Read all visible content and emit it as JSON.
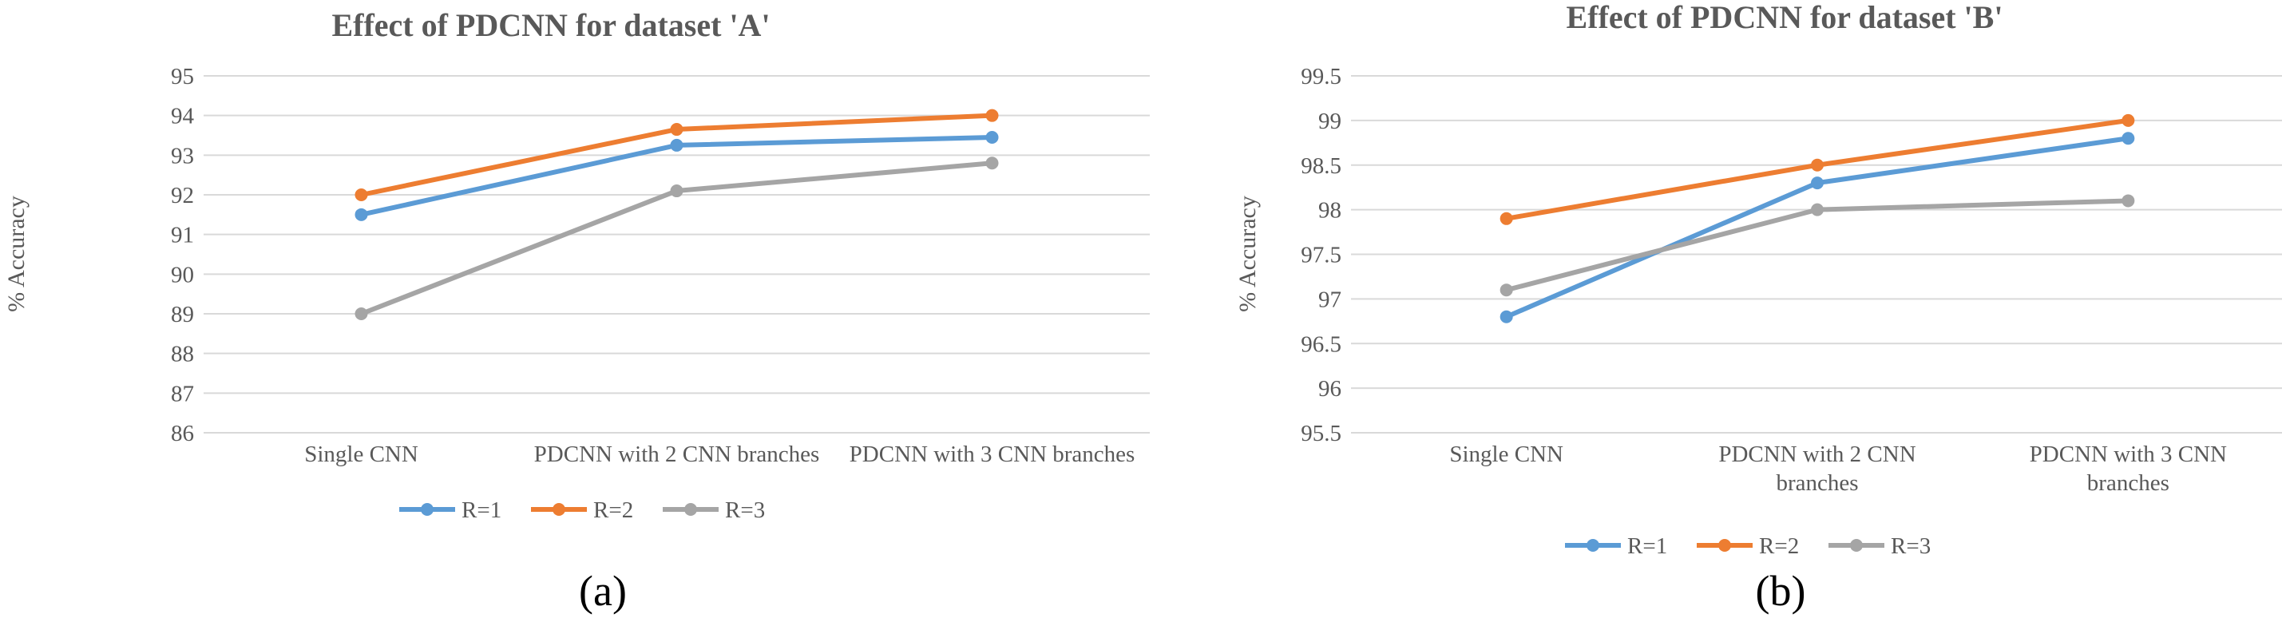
{
  "colors": {
    "R=1": "#5b9bd5",
    "R=2": "#ed7d31",
    "R=3": "#a5a5a5"
  },
  "chart_data": [
    {
      "type": "line",
      "title": "Effect of PDCNN for dataset 'A'",
      "ylabel": "% Accuracy",
      "xlabel": "",
      "categories": [
        [
          "Single CNN"
        ],
        [
          "PDCNN with 2 CNN branches"
        ],
        [
          "PDCNN with   3 CNN branches"
        ]
      ],
      "ylim": [
        86,
        95
      ],
      "ystep": 1,
      "yticks": [
        "86",
        "87",
        "88",
        "89",
        "90",
        "91",
        "92",
        "93",
        "94",
        "95"
      ],
      "grid": true,
      "legend_position": "bottom",
      "series": [
        {
          "name": "R=1",
          "values": [
            91.5,
            93.25,
            93.45
          ]
        },
        {
          "name": "R=2",
          "values": [
            92.0,
            93.65,
            94.0
          ]
        },
        {
          "name": "R=3",
          "values": [
            89.0,
            92.1,
            92.8
          ]
        }
      ],
      "panel_label": "(a)"
    },
    {
      "type": "line",
      "title": "Effect of PDCNN for dataset 'B'",
      "ylabel": "% Accuracy",
      "xlabel": "",
      "categories": [
        [
          "Single CNN"
        ],
        [
          "PDCNN with 2 CNN",
          "branches"
        ],
        [
          "PDCNN with 3 CNN",
          "branches"
        ]
      ],
      "ylim": [
        95.5,
        99.5
      ],
      "ystep": 0.5,
      "yticks": [
        "95.5",
        "96",
        "96.5",
        "97",
        "97.5",
        "98",
        "98.5",
        "99",
        "99.5"
      ],
      "grid": true,
      "legend_position": "bottom",
      "series": [
        {
          "name": "R=1",
          "values": [
            96.8,
            98.3,
            98.8
          ]
        },
        {
          "name": "R=2",
          "values": [
            97.9,
            98.5,
            99.0
          ]
        },
        {
          "name": "R=3",
          "values": [
            97.1,
            98.0,
            98.1
          ]
        }
      ],
      "panel_label": "(b)"
    }
  ]
}
